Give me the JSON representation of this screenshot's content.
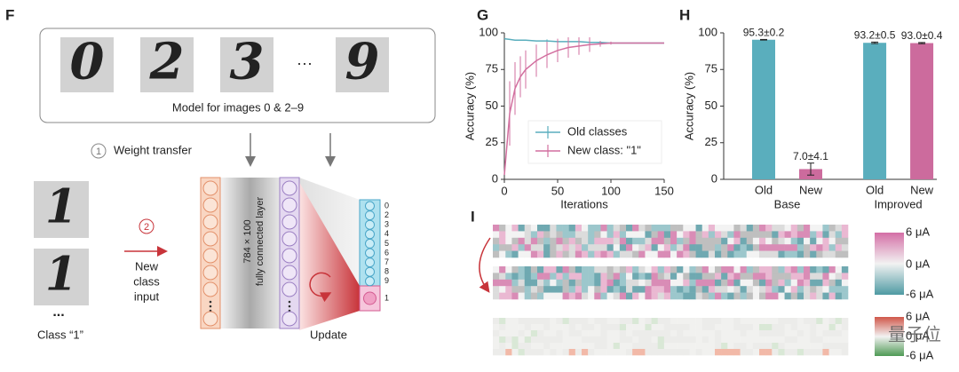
{
  "panel_labels": [
    "F",
    "G",
    "H",
    "I"
  ],
  "diagram": {
    "digits": [
      "0",
      "2",
      "3",
      "9"
    ],
    "digit_ellipsis": "···",
    "caption": "Model for images 0 & 2–9",
    "step1": {
      "number": "1",
      "label": "Weight transfer"
    },
    "input_digits": [
      "1",
      "1"
    ],
    "input_ellipsis": "...",
    "class_label": "Class “1”",
    "step2": {
      "number": "2",
      "label": [
        "New",
        "class",
        "input"
      ]
    },
    "layer_label": [
      "784 × 100",
      "fully connected layer"
    ],
    "output_labels": [
      "0",
      "2",
      "3",
      "4",
      "5",
      "6",
      "7",
      "8",
      "9",
      "1"
    ],
    "update": "Update"
  },
  "chart_data": [
    {
      "type": "line",
      "x": [
        0,
        5,
        10,
        15,
        20,
        30,
        40,
        50,
        60,
        70,
        80,
        90,
        100,
        110,
        120,
        130,
        140,
        150
      ],
      "series": [
        {
          "name": "Old classes",
          "color": "#5aaebd",
          "values": [
            96,
            95.5,
            95,
            95,
            95,
            94.5,
            94.5,
            94,
            94,
            94,
            93.5,
            93.5,
            93,
            93,
            93,
            93,
            93,
            93
          ],
          "errors": [
            0,
            0,
            0,
            0,
            0,
            0,
            1,
            1,
            1,
            1,
            1,
            1,
            0,
            0,
            0,
            0,
            0,
            0
          ]
        },
        {
          "name": "New class: \"1\"",
          "color": "#d26f9f",
          "values": [
            3,
            45,
            62,
            70,
            75,
            81,
            85,
            88,
            90,
            91,
            92,
            92.5,
            93,
            93,
            93,
            93,
            93,
            93
          ],
          "errors": [
            0,
            22,
            18,
            14,
            13,
            11,
            9,
            8,
            7,
            6,
            5,
            2,
            1,
            0,
            0,
            0,
            0,
            0
          ]
        }
      ],
      "xlim": [
        0,
        150
      ],
      "ylim": [
        0,
        100
      ],
      "xticks": [
        0,
        50,
        100,
        150
      ],
      "yticks": [
        0,
        25,
        50,
        75,
        100
      ],
      "xlabel": "Iterations",
      "ylabel": "Accuracy (%)",
      "legend": "lower right"
    },
    {
      "type": "bar",
      "categories": [
        "Old",
        "New",
        "Old",
        "New"
      ],
      "groups": [
        "Base",
        "Improved"
      ],
      "values": [
        95.3,
        7.0,
        93.2,
        93.0
      ],
      "errors": [
        0.2,
        4.1,
        0.5,
        0.4
      ],
      "value_labels": [
        "95.3±0.2",
        "7.0±4.1",
        "93.2±0.5",
        "93.0±0.4"
      ],
      "colors": [
        "#5aaebd",
        "#cc6b9d",
        "#5aaebd",
        "#cc6b9d"
      ],
      "ylim": [
        0,
        100
      ],
      "yticks": [
        0,
        25,
        50,
        75,
        100
      ],
      "ylabel": "Accuracy (%)"
    }
  ],
  "heatmap": {
    "colorbar_top": [
      "6 μA",
      "0 μA",
      "-6 μA"
    ],
    "colorbar_bottom": [
      "6 μA",
      "0 μA",
      "-6 μA"
    ]
  },
  "watermark": "量子位"
}
